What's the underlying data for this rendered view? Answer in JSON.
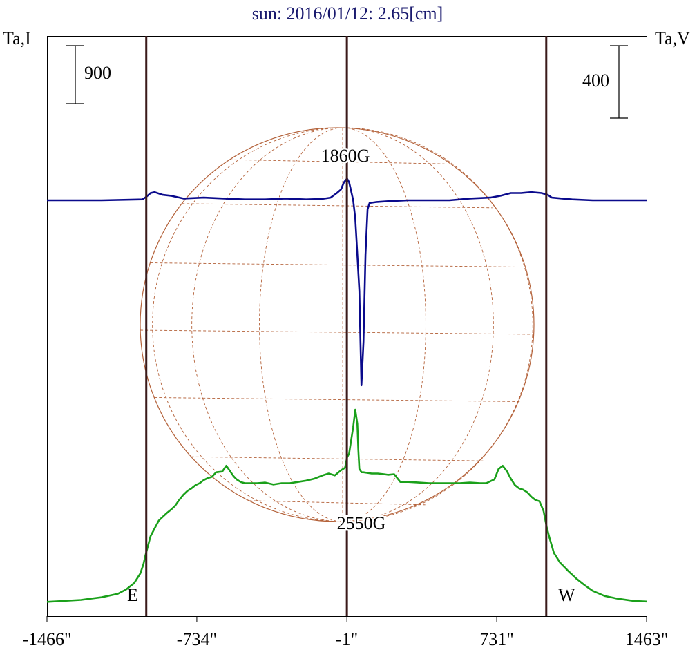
{
  "chart_data": {
    "type": "line",
    "title": "sun: 2016/01/12: 2.65[cm]",
    "left_axis_label": "Ta,I",
    "right_axis_label": "Ta,V",
    "left_scale_bar_label": "900",
    "right_scale_bar_label": "400",
    "x_tick_labels": [
      "-1466\"",
      "-734\"",
      "-1\"",
      "731\"",
      "1463\""
    ],
    "x_ticks": [
      -1466,
      -734,
      -1,
      731,
      1463
    ],
    "xlim": [
      -1466,
      1463
    ],
    "limb_markers": {
      "east": "E",
      "west": "W"
    },
    "vertical_lines_x": [
      -981,
      -1,
      973
    ],
    "annotations": [
      {
        "text": "1860G",
        "x": 0,
        "position": "above-center"
      },
      {
        "text": "2550G",
        "x": 0,
        "position": "below-center"
      }
    ],
    "grid": false,
    "background_globe": true,
    "colors": {
      "title": "#1a1a6e",
      "stokes_I": "#1aa01a",
      "stokes_V": "#0a0a8c",
      "markers": "#3a1a1a",
      "globe": "#b4623a"
    },
    "series": [
      {
        "key": "stokes_I",
        "x": [
          -1466,
          -1300,
          -1200,
          -1120,
          -1080,
          -1040,
          -1010,
          -995,
          -985,
          -975,
          -960,
          -940,
          -920,
          -900,
          -880,
          -860,
          -840,
          -820,
          -800,
          -780,
          -760,
          -740,
          -720,
          -700,
          -680,
          -660,
          -640,
          -610,
          -590,
          -570,
          -555,
          -540,
          -520,
          -500,
          -470,
          -440,
          -400,
          -360,
          -320,
          -280,
          -240,
          -200,
          -160,
          -120,
          -90,
          -60,
          -30,
          -10,
          0,
          10,
          20,
          30,
          40,
          50,
          55,
          60,
          65,
          70,
          80,
          100,
          120,
          150,
          180,
          200,
          230,
          260,
          300,
          350,
          400,
          450,
          500,
          550,
          600,
          650,
          680,
          700,
          720,
          740,
          760,
          780,
          800,
          820,
          840,
          860,
          880,
          900,
          920,
          940,
          960,
          975,
          990,
          1010,
          1040,
          1080,
          1120,
          1160,
          1200,
          1260,
          1320,
          1400,
          1463
        ],
        "y": [
          40,
          70,
          110,
          165,
          230,
          330,
          480,
          620,
          760,
          880,
          1060,
          1180,
          1300,
          1360,
          1420,
          1470,
          1530,
          1620,
          1700,
          1760,
          1800,
          1850,
          1880,
          1930,
          1960,
          1980,
          2050,
          2060,
          2150,
          2060,
          1990,
          1940,
          1900,
          1880,
          1880,
          1880,
          1890,
          1860,
          1880,
          1880,
          1900,
          1920,
          1950,
          2000,
          2030,
          2000,
          2080,
          2120,
          2280,
          2340,
          2550,
          2750,
          3020,
          2800,
          2400,
          2100,
          2080,
          2050,
          2050,
          2040,
          2030,
          2030,
          2020,
          2010,
          2020,
          1900,
          1900,
          1890,
          1880,
          1880,
          1880,
          1880,
          1890,
          1880,
          1880,
          1910,
          1940,
          2100,
          2150,
          2070,
          1950,
          1850,
          1800,
          1780,
          1740,
          1670,
          1620,
          1600,
          1450,
          1200,
          1020,
          800,
          650,
          520,
          400,
          300,
          210,
          130,
          90,
          55,
          45
        ]
      },
      {
        "key": "stokes_V",
        "x": [
          -1466,
          -1200,
          -1000,
          -980,
          -960,
          -940,
          -900,
          -860,
          -800,
          -700,
          -600,
          -500,
          -400,
          -300,
          -200,
          -120,
          -80,
          -50,
          -30,
          -15,
          0,
          10,
          20,
          30,
          40,
          50,
          60,
          70,
          80,
          90,
          100,
          110,
          140,
          200,
          300,
          400,
          500,
          600,
          700,
          750,
          800,
          850,
          900,
          950,
          980,
          1000,
          1050,
          1100,
          1200,
          1463
        ],
        "y": [
          0,
          0,
          5,
          20,
          40,
          45,
          30,
          25,
          10,
          15,
          10,
          5,
          5,
          10,
          5,
          8,
          15,
          40,
          60,
          100,
          120,
          100,
          50,
          0,
          -100,
          -300,
          -500,
          -1020,
          -780,
          -300,
          -50,
          -15,
          -10,
          -5,
          0,
          0,
          0,
          10,
          15,
          25,
          40,
          40,
          45,
          40,
          30,
          15,
          10,
          5,
          0,
          0
        ]
      }
    ]
  }
}
